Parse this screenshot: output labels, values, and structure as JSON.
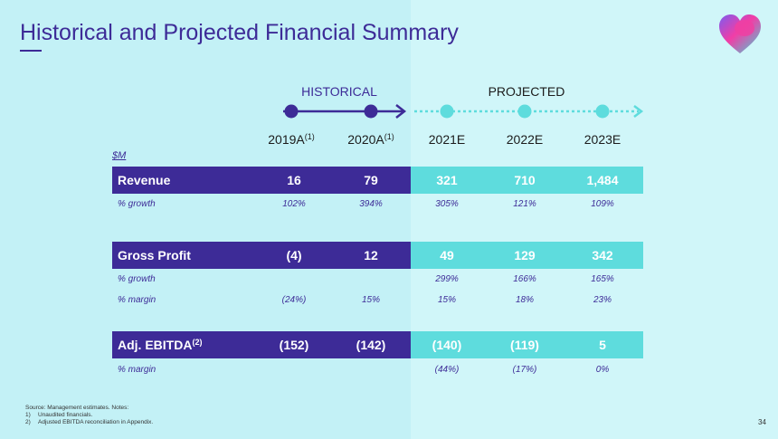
{
  "title": "Historical and Projected Financial Summary",
  "brand_colors": {
    "primary": "#3d2b97",
    "accent": "#5edcdd",
    "bg_hist": "#c3f1f6",
    "bg_proj": "#d0f6f9"
  },
  "logo": {
    "icon": "heart-logo-icon"
  },
  "headers": {
    "historical": "HISTORICAL",
    "projected": "PROJECTED"
  },
  "years": [
    {
      "label": "2019A",
      "note": "(1)"
    },
    {
      "label": "2020A",
      "note": "(1)"
    },
    {
      "label": "2021E",
      "note": ""
    },
    {
      "label": "2022E",
      "note": ""
    },
    {
      "label": "2023E",
      "note": ""
    }
  ],
  "unit": "$M",
  "revenue": {
    "label": "Revenue",
    "values": [
      "16",
      "79",
      "321",
      "710",
      "1,484"
    ],
    "growth_label": "% growth",
    "growth": [
      "102%",
      "394%",
      "305%",
      "121%",
      "109%"
    ]
  },
  "gross_profit": {
    "label": "Gross Profit",
    "values": [
      "(4)",
      "12",
      "49",
      "129",
      "342"
    ],
    "growth_label": "% growth",
    "growth": [
      "",
      "",
      "299%",
      "166%",
      "165%"
    ],
    "margin_label": "% margin",
    "margin": [
      "(24%)",
      "15%",
      "15%",
      "18%",
      "23%"
    ]
  },
  "ebitda": {
    "label": "Adj. EBITDA",
    "note": "(2)",
    "values": [
      "(152)",
      "(142)",
      "(140)",
      "(119)",
      "5"
    ],
    "margin_label": "% margin",
    "margin": [
      "",
      "",
      "(44%)",
      "(17%)",
      "0%"
    ]
  },
  "footnotes": {
    "source": "Source: Management estimates. Notes:",
    "items": [
      {
        "n": "1)",
        "text": "Unaudited financials."
      },
      {
        "n": "2)",
        "text": "Adjusted EBITDA reconciliation in Appendix."
      }
    ]
  },
  "page_number": "34"
}
